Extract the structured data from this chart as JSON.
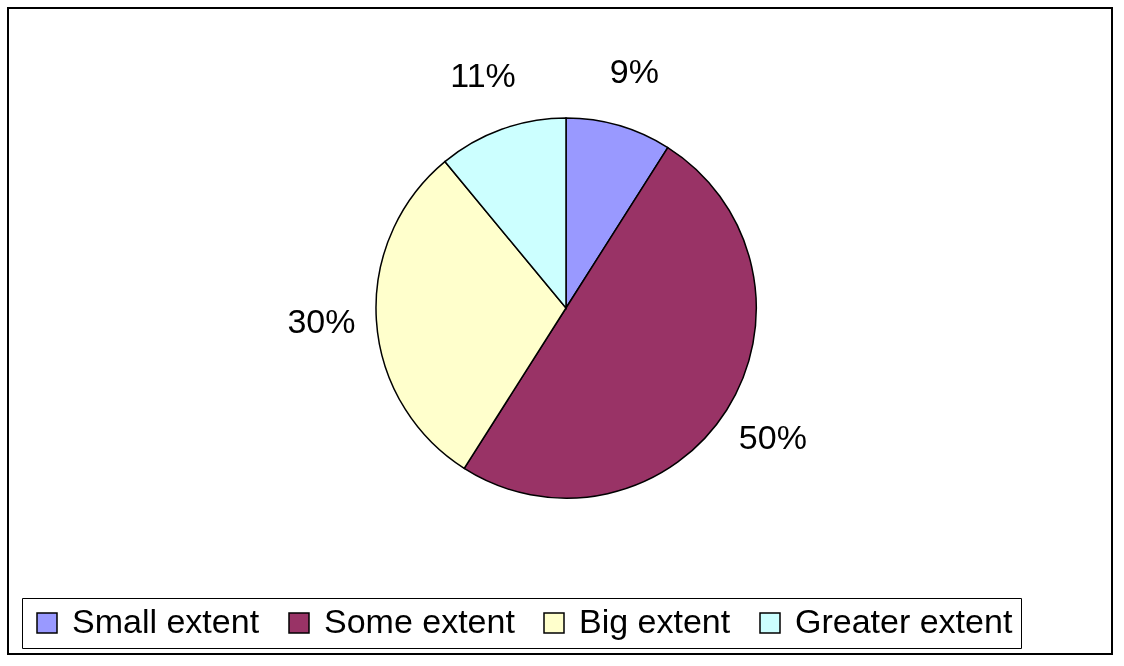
{
  "chart_data": {
    "type": "pie",
    "categories": [
      "Small extent",
      "Some extent",
      "Big extent",
      "Greater extent"
    ],
    "values": [
      9,
      50,
      30,
      11
    ],
    "colors": [
      "#9999ff",
      "#993366",
      "#ffffcc",
      "#ccffff"
    ],
    "value_labels": [
      "9%",
      "50%",
      "30%",
      "11%"
    ],
    "legend": "bottom"
  }
}
